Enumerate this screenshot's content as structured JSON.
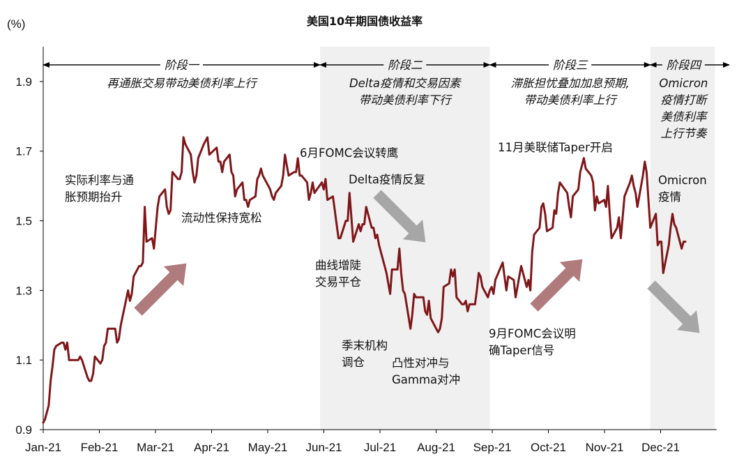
{
  "chart_data": {
    "type": "line",
    "title": "美国10年期国债收益率",
    "ylabel": "(%)",
    "xlabel": "",
    "ylim": [
      0.9,
      2.0
    ],
    "yticks": [
      "0.9",
      "1.1",
      "1.3",
      "1.5",
      "1.7",
      "1.9"
    ],
    "x_ticks": [
      "Jan-21",
      "Feb-21",
      "Mar-21",
      "Apr-21",
      "May-21",
      "Jun-21",
      "Jul-21",
      "Aug-21",
      "Sep-21",
      "Oct-21",
      "Nov-21",
      "Dec-21"
    ],
    "grid": false,
    "series_color": "#7f1619",
    "series": [
      {
        "values": [
          [
            "2021-01-01",
            0.92
          ],
          [
            "2021-01-02",
            0.93
          ],
          [
            "2021-01-04",
            0.97
          ],
          [
            "2021-01-05",
            1.04
          ],
          [
            "2021-01-06",
            1.08
          ],
          [
            "2021-01-07",
            1.13
          ],
          [
            "2021-01-08",
            1.14
          ],
          [
            "2021-01-11",
            1.15
          ],
          [
            "2021-01-12",
            1.15
          ],
          [
            "2021-01-13",
            1.13
          ],
          [
            "2021-01-14",
            1.15
          ],
          [
            "2021-01-15",
            1.1
          ],
          [
            "2021-01-19",
            1.1
          ],
          [
            "2021-01-20",
            1.1
          ],
          [
            "2021-01-21",
            1.11
          ],
          [
            "2021-01-22",
            1.1
          ],
          [
            "2021-01-25",
            1.05
          ],
          [
            "2021-01-26",
            1.04
          ],
          [
            "2021-01-27",
            1.04
          ],
          [
            "2021-01-28",
            1.06
          ],
          [
            "2021-01-29",
            1.11
          ],
          [
            "2021-02-01",
            1.09
          ],
          [
            "2021-02-02",
            1.1
          ],
          [
            "2021-02-03",
            1.14
          ],
          [
            "2021-02-04",
            1.15
          ],
          [
            "2021-02-05",
            1.19
          ],
          [
            "2021-02-08",
            1.19
          ],
          [
            "2021-02-09",
            1.19
          ],
          [
            "2021-02-10",
            1.15
          ],
          [
            "2021-02-11",
            1.16
          ],
          [
            "2021-02-12",
            1.2
          ],
          [
            "2021-02-16",
            1.3
          ],
          [
            "2021-02-17",
            1.27
          ],
          [
            "2021-02-18",
            1.29
          ],
          [
            "2021-02-19",
            1.34
          ],
          [
            "2021-02-22",
            1.37
          ],
          [
            "2021-02-23",
            1.37
          ],
          [
            "2021-02-24",
            1.38
          ],
          [
            "2021-02-25",
            1.54
          ],
          [
            "2021-02-26",
            1.44
          ],
          [
            "2021-03-01",
            1.45
          ],
          [
            "2021-03-02",
            1.42
          ],
          [
            "2021-03-03",
            1.48
          ],
          [
            "2021-03-04",
            1.54
          ],
          [
            "2021-03-05",
            1.57
          ],
          [
            "2021-03-08",
            1.59
          ],
          [
            "2021-03-09",
            1.54
          ],
          [
            "2021-03-10",
            1.52
          ],
          [
            "2021-03-11",
            1.53
          ],
          [
            "2021-03-12",
            1.64
          ],
          [
            "2021-03-15",
            1.62
          ],
          [
            "2021-03-16",
            1.62
          ],
          [
            "2021-03-17",
            1.64
          ],
          [
            "2021-03-18",
            1.74
          ],
          [
            "2021-03-19",
            1.72
          ],
          [
            "2021-03-22",
            1.69
          ],
          [
            "2021-03-23",
            1.64
          ],
          [
            "2021-03-24",
            1.61
          ],
          [
            "2021-03-25",
            1.63
          ],
          [
            "2021-03-26",
            1.68
          ],
          [
            "2021-03-29",
            1.72
          ],
          [
            "2021-03-30",
            1.73
          ],
          [
            "2021-03-31",
            1.74
          ],
          [
            "2021-04-01",
            1.69
          ],
          [
            "2021-04-05",
            1.71
          ],
          [
            "2021-04-06",
            1.67
          ],
          [
            "2021-04-07",
            1.67
          ],
          [
            "2021-04-08",
            1.64
          ],
          [
            "2021-04-09",
            1.67
          ],
          [
            "2021-04-12",
            1.69
          ],
          [
            "2021-04-13",
            1.64
          ],
          [
            "2021-04-14",
            1.63
          ],
          [
            "2021-04-15",
            1.57
          ],
          [
            "2021-04-16",
            1.59
          ],
          [
            "2021-04-19",
            1.61
          ],
          [
            "2021-04-20",
            1.56
          ],
          [
            "2021-04-21",
            1.56
          ],
          [
            "2021-04-22",
            1.54
          ],
          [
            "2021-04-23",
            1.56
          ],
          [
            "2021-04-26",
            1.57
          ],
          [
            "2021-04-27",
            1.62
          ],
          [
            "2021-04-28",
            1.63
          ],
          [
            "2021-04-29",
            1.65
          ],
          [
            "2021-04-30",
            1.63
          ],
          [
            "2021-05-03",
            1.6
          ],
          [
            "2021-05-04",
            1.59
          ],
          [
            "2021-05-05",
            1.57
          ],
          [
            "2021-05-06",
            1.56
          ],
          [
            "2021-05-07",
            1.58
          ],
          [
            "2021-05-10",
            1.6
          ],
          [
            "2021-05-11",
            1.63
          ],
          [
            "2021-05-12",
            1.69
          ],
          [
            "2021-05-13",
            1.66
          ],
          [
            "2021-05-14",
            1.63
          ],
          [
            "2021-05-17",
            1.64
          ],
          [
            "2021-05-18",
            1.64
          ],
          [
            "2021-05-19",
            1.68
          ],
          [
            "2021-05-20",
            1.63
          ],
          [
            "2021-05-21",
            1.63
          ],
          [
            "2021-05-24",
            1.61
          ],
          [
            "2021-05-25",
            1.56
          ],
          [
            "2021-05-26",
            1.58
          ],
          [
            "2021-05-27",
            1.61
          ],
          [
            "2021-05-28",
            1.58
          ],
          [
            "2021-06-01",
            1.61
          ],
          [
            "2021-06-02",
            1.59
          ],
          [
            "2021-06-03",
            1.62
          ],
          [
            "2021-06-04",
            1.56
          ],
          [
            "2021-06-07",
            1.57
          ],
          [
            "2021-06-08",
            1.53
          ],
          [
            "2021-06-09",
            1.49
          ],
          [
            "2021-06-10",
            1.45
          ],
          [
            "2021-06-11",
            1.45
          ],
          [
            "2021-06-14",
            1.5
          ],
          [
            "2021-06-15",
            1.5
          ],
          [
            "2021-06-16",
            1.58
          ],
          [
            "2021-06-17",
            1.51
          ],
          [
            "2021-06-18",
            1.44
          ],
          [
            "2021-06-21",
            1.49
          ],
          [
            "2021-06-22",
            1.47
          ],
          [
            "2021-06-23",
            1.49
          ],
          [
            "2021-06-24",
            1.49
          ],
          [
            "2021-06-25",
            1.54
          ],
          [
            "2021-06-28",
            1.48
          ],
          [
            "2021-06-29",
            1.48
          ],
          [
            "2021-06-30",
            1.45
          ],
          [
            "2021-07-01",
            1.46
          ],
          [
            "2021-07-02",
            1.43
          ],
          [
            "2021-07-06",
            1.35
          ],
          [
            "2021-07-07",
            1.32
          ],
          [
            "2021-07-08",
            1.29
          ],
          [
            "2021-07-09",
            1.36
          ],
          [
            "2021-07-12",
            1.36
          ],
          [
            "2021-07-13",
            1.42
          ],
          [
            "2021-07-14",
            1.35
          ],
          [
            "2021-07-15",
            1.3
          ],
          [
            "2021-07-16",
            1.29
          ],
          [
            "2021-07-19",
            1.19
          ],
          [
            "2021-07-20",
            1.23
          ],
          [
            "2021-07-21",
            1.29
          ],
          [
            "2021-07-22",
            1.28
          ],
          [
            "2021-07-23",
            1.28
          ],
          [
            "2021-07-26",
            1.28
          ],
          [
            "2021-07-27",
            1.24
          ],
          [
            "2021-07-28",
            1.23
          ],
          [
            "2021-07-29",
            1.27
          ],
          [
            "2021-07-30",
            1.22
          ],
          [
            "2021-08-02",
            1.19
          ],
          [
            "2021-08-03",
            1.18
          ],
          [
            "2021-08-04",
            1.19
          ],
          [
            "2021-08-05",
            1.22
          ],
          [
            "2021-08-06",
            1.31
          ],
          [
            "2021-08-09",
            1.32
          ],
          [
            "2021-08-10",
            1.36
          ],
          [
            "2021-08-11",
            1.34
          ],
          [
            "2021-08-12",
            1.36
          ],
          [
            "2021-08-13",
            1.28
          ],
          [
            "2021-08-16",
            1.26
          ],
          [
            "2021-08-17",
            1.26
          ],
          [
            "2021-08-18",
            1.27
          ],
          [
            "2021-08-19",
            1.24
          ],
          [
            "2021-08-20",
            1.26
          ],
          [
            "2021-08-23",
            1.26
          ],
          [
            "2021-08-24",
            1.3
          ],
          [
            "2021-08-25",
            1.35
          ],
          [
            "2021-08-26",
            1.34
          ],
          [
            "2021-08-27",
            1.31
          ],
          [
            "2021-08-30",
            1.28
          ],
          [
            "2021-08-31",
            1.3
          ],
          [
            "2021-09-01",
            1.31
          ],
          [
            "2021-09-02",
            1.29
          ],
          [
            "2021-09-03",
            1.33
          ],
          [
            "2021-09-07",
            1.38
          ],
          [
            "2021-09-08",
            1.34
          ],
          [
            "2021-09-09",
            1.3
          ],
          [
            "2021-09-10",
            1.34
          ],
          [
            "2021-09-13",
            1.33
          ],
          [
            "2021-09-14",
            1.28
          ],
          [
            "2021-09-15",
            1.31
          ],
          [
            "2021-09-16",
            1.34
          ],
          [
            "2021-09-17",
            1.37
          ],
          [
            "2021-09-20",
            1.31
          ],
          [
            "2021-09-21",
            1.33
          ],
          [
            "2021-09-22",
            1.3
          ],
          [
            "2021-09-23",
            1.41
          ],
          [
            "2021-09-24",
            1.46
          ],
          [
            "2021-09-27",
            1.48
          ],
          [
            "2021-09-28",
            1.54
          ],
          [
            "2021-09-29",
            1.55
          ],
          [
            "2021-09-30",
            1.52
          ],
          [
            "2021-10-01",
            1.47
          ],
          [
            "2021-10-04",
            1.48
          ],
          [
            "2021-10-05",
            1.53
          ],
          [
            "2021-10-06",
            1.52
          ],
          [
            "2021-10-07",
            1.58
          ],
          [
            "2021-10-08",
            1.61
          ],
          [
            "2021-10-12",
            1.58
          ],
          [
            "2021-10-13",
            1.54
          ],
          [
            "2021-10-14",
            1.51
          ],
          [
            "2021-10-15",
            1.57
          ],
          [
            "2021-10-18",
            1.59
          ],
          [
            "2021-10-19",
            1.64
          ],
          [
            "2021-10-20",
            1.66
          ],
          [
            "2021-10-21",
            1.68
          ],
          [
            "2021-10-22",
            1.65
          ],
          [
            "2021-10-25",
            1.63
          ],
          [
            "2021-10-26",
            1.61
          ],
          [
            "2021-10-27",
            1.53
          ],
          [
            "2021-10-28",
            1.57
          ],
          [
            "2021-10-29",
            1.55
          ],
          [
            "2021-11-01",
            1.56
          ],
          [
            "2021-11-02",
            1.54
          ],
          [
            "2021-11-03",
            1.6
          ],
          [
            "2021-11-04",
            1.52
          ],
          [
            "2021-11-05",
            1.45
          ],
          [
            "2021-11-08",
            1.48
          ],
          [
            "2021-11-09",
            1.51
          ],
          [
            "2021-11-10",
            1.45
          ],
          [
            "2021-11-12",
            1.57
          ],
          [
            "2021-11-15",
            1.61
          ],
          [
            "2021-11-16",
            1.63
          ],
          [
            "2021-11-17",
            1.6
          ],
          [
            "2021-11-18",
            1.58
          ],
          [
            "2021-11-19",
            1.54
          ],
          [
            "2021-11-22",
            1.63
          ],
          [
            "2021-11-23",
            1.67
          ],
          [
            "2021-11-24",
            1.64
          ],
          [
            "2021-11-26",
            1.48
          ],
          [
            "2021-11-29",
            1.52
          ],
          [
            "2021-11-30",
            1.43
          ],
          [
            "2021-12-01",
            1.44
          ],
          [
            "2021-12-02",
            1.44
          ],
          [
            "2021-12-03",
            1.35
          ],
          [
            "2021-12-06",
            1.43
          ],
          [
            "2021-12-07",
            1.48
          ],
          [
            "2021-12-08",
            1.52
          ],
          [
            "2021-12-09",
            1.49
          ],
          [
            "2021-12-10",
            1.48
          ],
          [
            "2021-12-13",
            1.42
          ],
          [
            "2021-12-14",
            1.44
          ],
          [
            "2021-12-15",
            1.44
          ]
        ]
      }
    ],
    "phases": [
      {
        "start": "2021-01-01",
        "end": "2021-05-31",
        "shaded": false,
        "name": "阶段一",
        "desc": [
          "再通胀交易带动美债利率上行"
        ]
      },
      {
        "start": "2021-05-31",
        "end": "2021-08-31",
        "shaded": true,
        "name": "阶段二",
        "desc": [
          "Delta疫情和交易因素",
          "带动美债利率下行"
        ]
      },
      {
        "start": "2021-08-31",
        "end": "2021-11-26",
        "shaded": false,
        "name": "阶段三",
        "desc": [
          "滞胀担忧叠加加息预期,",
          "带动美债利率上行"
        ]
      },
      {
        "start": "2021-11-26",
        "end": "2021-12-31",
        "shaded": true,
        "name": "阶段四",
        "desc": [
          "Omicron",
          "疫情打断",
          "美债利率",
          "上行节奏"
        ]
      }
    ],
    "annotations": [
      {
        "lines": [
          "实际利率与通",
          "胀预期抬升"
        ]
      },
      {
        "lines": [
          "流动性保持宽松"
        ]
      },
      {
        "lines": [
          "6月FOMC会议转鹰"
        ]
      },
      {
        "lines": [
          "Delta疫情反复"
        ]
      },
      {
        "lines": [
          "曲线增陡",
          "交易平仓"
        ]
      },
      {
        "lines": [
          "季末机构",
          "调仓"
        ]
      },
      {
        "lines": [
          "凸性对冲与",
          "Gamma对冲"
        ]
      },
      {
        "lines": [
          "11月美联储Taper开启"
        ]
      },
      {
        "lines": [
          "9月FOMC会议明",
          "确Taper信号"
        ]
      },
      {
        "lines": [
          "Omicron",
          "疫情"
        ]
      }
    ],
    "trend_arrows": [
      {
        "direction": "up",
        "color": "#b07b7c"
      },
      {
        "direction": "down",
        "color": "#a6a6a6"
      },
      {
        "direction": "up",
        "color": "#b07b7c"
      },
      {
        "direction": "down",
        "color": "#a6a6a6"
      }
    ]
  }
}
